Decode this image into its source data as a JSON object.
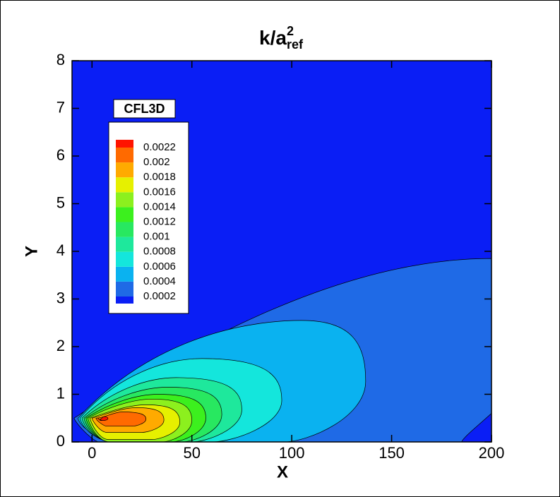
{
  "chart_data": {
    "type": "contour",
    "title": {
      "base": "k/a",
      "sup": "2",
      "sub": "ref"
    },
    "x_label": "X",
    "y_label": "Y",
    "xlim": [
      -10,
      200
    ],
    "ylim": [
      0,
      8
    ],
    "xticks": [
      0,
      50,
      100,
      150,
      200
    ],
    "yticks": [
      0,
      1,
      2,
      3,
      4,
      5,
      6,
      7,
      8
    ],
    "legend_title": "CFL3D",
    "levels": [
      0.0002,
      0.0004,
      0.0006,
      0.0008,
      0.001,
      0.0012,
      0.0014,
      0.0016,
      0.0018,
      0.002,
      0.0022
    ],
    "colors": [
      "#0a1ef5",
      "#1f6ae6",
      "#0ab2f0",
      "#14e6dc",
      "#1ee89c",
      "#28e860",
      "#3cf01e",
      "#8cf01e",
      "#e6f000",
      "#ffaa00",
      "#ff6a00",
      "#ff1400"
    ]
  }
}
